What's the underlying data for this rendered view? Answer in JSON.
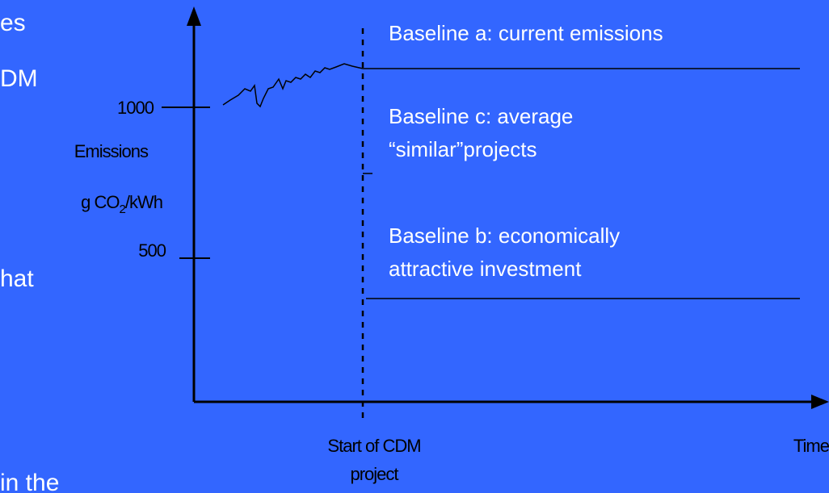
{
  "slide_text": [
    "es",
    "DM",
    "hat",
    "in the"
  ],
  "diagram": {
    "y_axis": {
      "tick_high": "1000",
      "tick_low": "500",
      "label": "Emissions",
      "unit": {
        "prefix": "g CO",
        "sub": "2",
        "suffix": "/kWh"
      }
    },
    "x_axis": {
      "start_label": [
        "Start of CDM",
        "project"
      ],
      "end_label": "Time"
    },
    "baselines": [
      {
        "label": [
          "Baseline a: current emissions"
        ]
      },
      {
        "label": [
          "Baseline c: average",
          "“similar”projects"
        ]
      },
      {
        "label": [
          "Baseline b: economically",
          "attractive investment"
        ]
      }
    ]
  }
}
